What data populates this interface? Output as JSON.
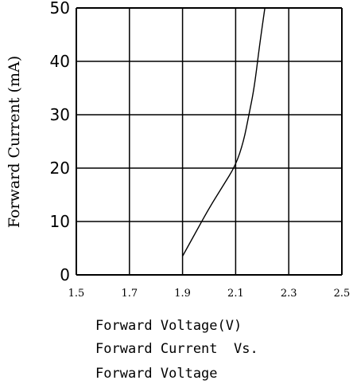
{
  "chart_data": {
    "type": "line",
    "xlabel": "Forward Voltage(V)",
    "ylabel": "Forward Current (mA)",
    "title_lines": [
      "Forward Current  Vs.",
      "Forward Voltage"
    ],
    "xlim": [
      1.5,
      2.5
    ],
    "ylim": [
      0,
      50
    ],
    "xticks": [
      "1.5",
      "1.7",
      "1.9",
      "2.1",
      "2.3",
      "2.5"
    ],
    "yticks": [
      "0",
      "10",
      "20",
      "30",
      "40",
      "50"
    ],
    "grid": true,
    "series": [
      {
        "x": [
          1.9,
          1.95,
          2.0,
          2.05,
          2.1,
          2.13,
          2.15,
          2.17,
          2.19,
          2.21
        ],
        "y": [
          3.5,
          8,
          12.5,
          16.5,
          20.5,
          25,
          30,
          35,
          43,
          50
        ],
        "color": "#000000"
      }
    ]
  }
}
